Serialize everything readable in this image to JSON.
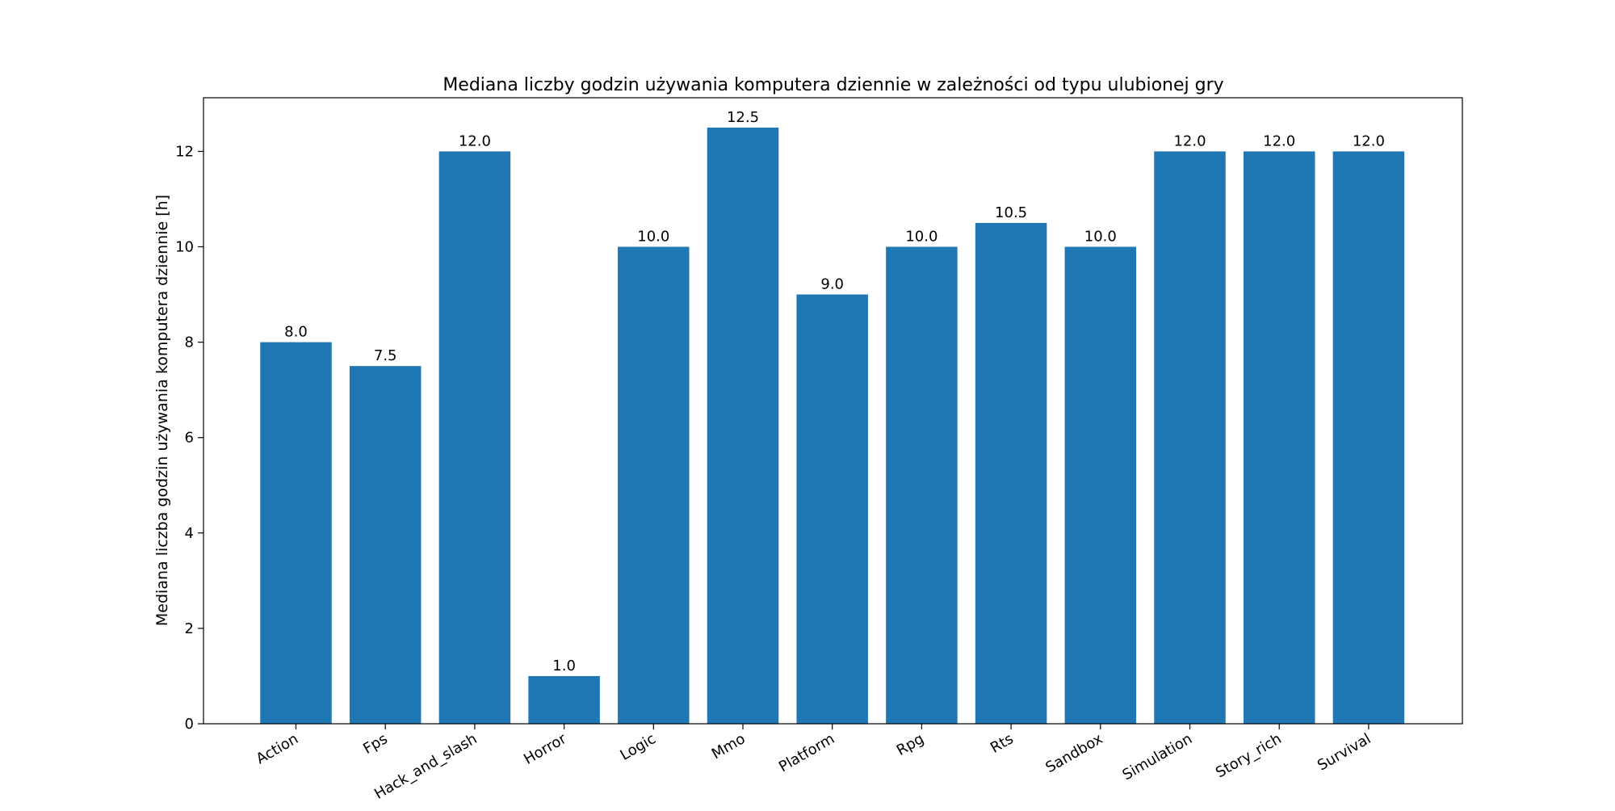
{
  "chart_data": {
    "type": "bar",
    "title": "Mediana liczby godzin używania komputera dziennie w zależności od typu ulubionej gry",
    "xlabel": "",
    "ylabel": "Mediana liczba godzin używania komputera dziennie [h]",
    "categories": [
      "Action",
      "Fps",
      "Hack_and_slash",
      "Horror",
      "Logic",
      "Mmo",
      "Platform",
      "Rpg",
      "Rts",
      "Sandbox",
      "Simulation",
      "Story_rich",
      "Survival"
    ],
    "values": [
      8.0,
      7.5,
      12.0,
      1.0,
      10.0,
      12.5,
      9.0,
      10.0,
      10.5,
      10.0,
      12.0,
      12.0,
      12.0
    ],
    "value_labels": [
      "8.0",
      "7.5",
      "12.0",
      "1.0",
      "10.0",
      "12.5",
      "9.0",
      "10.0",
      "10.5",
      "10.0",
      "12.0",
      "12.0",
      "12.0"
    ],
    "ylim": [
      0,
      13.125
    ],
    "yticks": [
      0,
      2,
      4,
      6,
      8,
      10,
      12
    ],
    "grid": false,
    "bar_color": "#1f77b4"
  }
}
